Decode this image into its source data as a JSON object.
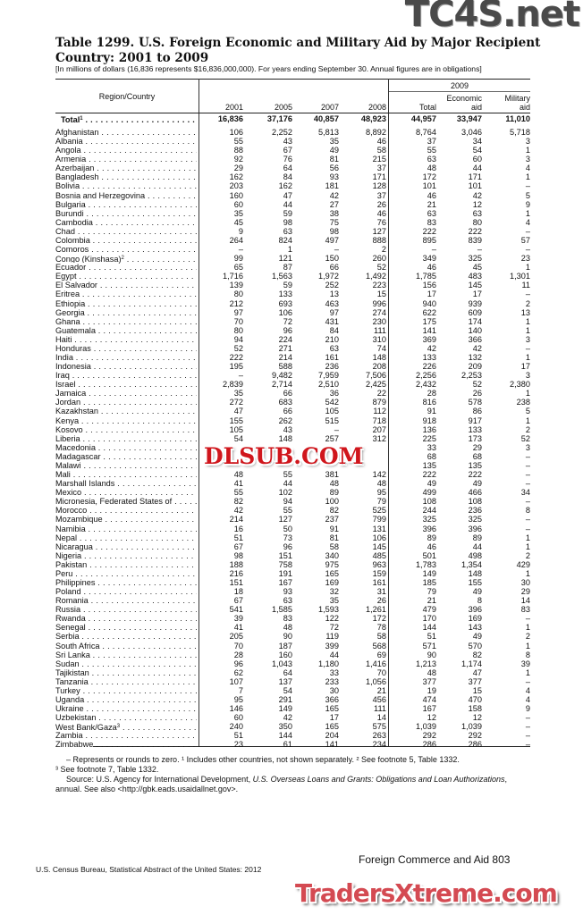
{
  "title": "Table 1299. U.S. Foreign Economic and Military Aid by Major Recipient Country: 2001 to 2009",
  "subtitle": "[In millions of dollars (16,836 represents $16,836,000,000). For years ending September 30. Annual figures are in obligations]",
  "header": {
    "region": "Region/Country",
    "y2001": "2001",
    "y2005": "2005",
    "y2007": "2007",
    "y2008": "2008",
    "y2009": "2009",
    "total": "Total",
    "economic_1": "Economic",
    "economic_2": "aid",
    "military_1": "Military",
    "military_2": "aid"
  },
  "total_row": {
    "name": "Total",
    "sup": "1",
    "values": [
      "16,836",
      "37,176",
      "40,857",
      "48,923",
      "44,957",
      "33,947",
      "11,010"
    ]
  },
  "rows": [
    {
      "name": "Afghanistan",
      "values": [
        "106",
        "2,252",
        "5,813",
        "8,892",
        "8,764",
        "3,046",
        "5,718"
      ]
    },
    {
      "name": "Albania",
      "values": [
        "55",
        "43",
        "35",
        "46",
        "37",
        "34",
        "3"
      ]
    },
    {
      "name": "Angola",
      "values": [
        "88",
        "67",
        "49",
        "58",
        "55",
        "54",
        "1"
      ]
    },
    {
      "name": "Armenia",
      "values": [
        "92",
        "76",
        "81",
        "215",
        "63",
        "60",
        "3"
      ]
    },
    {
      "name": "Azerbaijan",
      "values": [
        "29",
        "64",
        "56",
        "37",
        "48",
        "44",
        "4"
      ]
    },
    {
      "name": "Bangladesh",
      "values": [
        "162",
        "84",
        "93",
        "171",
        "172",
        "171",
        "1"
      ]
    },
    {
      "name": "Bolivia",
      "values": [
        "203",
        "162",
        "181",
        "128",
        "101",
        "101",
        "–"
      ]
    },
    {
      "name": "Bosnia and Herzegovina",
      "values": [
        "160",
        "47",
        "42",
        "37",
        "46",
        "42",
        "5"
      ]
    },
    {
      "name": "Bulgaria",
      "values": [
        "60",
        "44",
        "27",
        "26",
        "21",
        "12",
        "9"
      ]
    },
    {
      "name": "Burundi",
      "values": [
        "35",
        "59",
        "38",
        "46",
        "63",
        "63",
        "1"
      ]
    },
    {
      "name": "Cambodia",
      "values": [
        "45",
        "98",
        "75",
        "76",
        "83",
        "80",
        "4"
      ]
    },
    {
      "name": "Chad",
      "values": [
        "9",
        "63",
        "98",
        "127",
        "222",
        "222",
        "–"
      ]
    },
    {
      "name": "Colombia",
      "values": [
        "264",
        "824",
        "497",
        "888",
        "895",
        "839",
        "57"
      ]
    },
    {
      "name": "Comoros",
      "values": [
        "–",
        "1",
        "–",
        "2",
        "–",
        "–",
        "–"
      ]
    },
    {
      "name": "Congo (Kinshasa)",
      "sup": "2",
      "values": [
        "99",
        "121",
        "150",
        "260",
        "349",
        "325",
        "23"
      ]
    },
    {
      "name": "Ecuador",
      "values": [
        "65",
        "87",
        "66",
        "52",
        "46",
        "45",
        "1"
      ]
    },
    {
      "name": "Egypt",
      "values": [
        "1,716",
        "1,563",
        "1,972",
        "1,492",
        "1,785",
        "483",
        "1,301"
      ]
    },
    {
      "name": "El Salvador",
      "values": [
        "139",
        "59",
        "252",
        "223",
        "156",
        "145",
        "11"
      ]
    },
    {
      "name": "Eritrea",
      "values": [
        "80",
        "133",
        "13",
        "15",
        "17",
        "17",
        "–"
      ]
    },
    {
      "name": "Ethiopia",
      "values": [
        "212",
        "693",
        "463",
        "996",
        "940",
        "939",
        "2"
      ]
    },
    {
      "name": "Georgia",
      "values": [
        "97",
        "106",
        "97",
        "274",
        "622",
        "609",
        "13"
      ]
    },
    {
      "name": "Ghana",
      "values": [
        "70",
        "72",
        "431",
        "230",
        "175",
        "174",
        "1"
      ]
    },
    {
      "name": "Guatemala",
      "values": [
        "80",
        "96",
        "84",
        "111",
        "141",
        "140",
        "1"
      ]
    },
    {
      "name": "Haiti",
      "values": [
        "94",
        "224",
        "210",
        "310",
        "369",
        "366",
        "3"
      ]
    },
    {
      "name": "Honduras",
      "values": [
        "52",
        "271",
        "63",
        "74",
        "42",
        "42",
        "–"
      ]
    },
    {
      "name": "India",
      "values": [
        "222",
        "214",
        "161",
        "148",
        "133",
        "132",
        "1"
      ]
    },
    {
      "name": "Indonesia",
      "values": [
        "195",
        "588",
        "236",
        "208",
        "226",
        "209",
        "17"
      ]
    },
    {
      "name": "Iraq",
      "values": [
        "–",
        "9,482",
        "7,959",
        "7,506",
        "2,256",
        "2,253",
        "3"
      ]
    },
    {
      "name": "Israel",
      "values": [
        "2,839",
        "2,714",
        "2,510",
        "2,425",
        "2,432",
        "52",
        "2,380"
      ]
    },
    {
      "name": "Jamaica",
      "values": [
        "35",
        "66",
        "36",
        "22",
        "28",
        "26",
        "1"
      ]
    },
    {
      "name": "Jordan",
      "values": [
        "272",
        "683",
        "542",
        "879",
        "816",
        "578",
        "238"
      ]
    },
    {
      "name": "Kazakhstan",
      "values": [
        "47",
        "66",
        "105",
        "112",
        "91",
        "86",
        "5"
      ]
    },
    {
      "name": "Kenya",
      "values": [
        "155",
        "262",
        "515",
        "718",
        "918",
        "917",
        "1"
      ]
    },
    {
      "name": "Kosovo",
      "values": [
        "105",
        "43",
        "–",
        "207",
        "136",
        "133",
        "2"
      ]
    },
    {
      "name": "Liberia",
      "values": [
        "54",
        "148",
        "257",
        "312",
        "225",
        "173",
        "52"
      ]
    },
    {
      "name": "Macedonia",
      "values": [
        "",
        "",
        "",
        "",
        "33",
        "29",
        "3"
      ]
    },
    {
      "name": "Madagascar",
      "values": [
        "",
        "",
        "",
        "",
        "68",
        "68",
        "–"
      ]
    },
    {
      "name": "Malawi",
      "values": [
        "",
        "",
        "",
        "",
        "135",
        "135",
        "–"
      ]
    },
    {
      "name": "Mali",
      "values": [
        "48",
        "55",
        "381",
        "142",
        "222",
        "222",
        "–"
      ]
    },
    {
      "name": "Marshall Islands",
      "values": [
        "41",
        "44",
        "48",
        "48",
        "49",
        "49",
        "–"
      ]
    },
    {
      "name": "Mexico",
      "values": [
        "55",
        "102",
        "89",
        "95",
        "499",
        "466",
        "34"
      ]
    },
    {
      "name": "Micronesia, Federated States of",
      "values": [
        "82",
        "94",
        "100",
        "79",
        "108",
        "108",
        "–"
      ]
    },
    {
      "name": "Morocco",
      "values": [
        "42",
        "55",
        "82",
        "525",
        "244",
        "236",
        "8"
      ]
    },
    {
      "name": "Mozambique",
      "values": [
        "214",
        "127",
        "237",
        "799",
        "325",
        "325",
        "–"
      ]
    },
    {
      "name": "Namibia",
      "values": [
        "16",
        "50",
        "91",
        "131",
        "396",
        "396",
        "–"
      ]
    },
    {
      "name": "Nepal",
      "values": [
        "51",
        "73",
        "81",
        "106",
        "89",
        "89",
        "1"
      ]
    },
    {
      "name": "Nicaragua",
      "values": [
        "67",
        "96",
        "58",
        "145",
        "46",
        "44",
        "1"
      ]
    },
    {
      "name": "Nigeria",
      "values": [
        "98",
        "151",
        "340",
        "485",
        "501",
        "498",
        "2"
      ]
    },
    {
      "name": "Pakistan",
      "values": [
        "188",
        "758",
        "975",
        "963",
        "1,783",
        "1,354",
        "429"
      ]
    },
    {
      "name": "Peru",
      "values": [
        "216",
        "191",
        "165",
        "159",
        "149",
        "148",
        "1"
      ]
    },
    {
      "name": "Philippines",
      "values": [
        "151",
        "167",
        "169",
        "161",
        "185",
        "155",
        "30"
      ]
    },
    {
      "name": "Poland",
      "values": [
        "18",
        "93",
        "32",
        "31",
        "79",
        "49",
        "29"
      ]
    },
    {
      "name": "Romania",
      "values": [
        "67",
        "63",
        "35",
        "26",
        "21",
        "8",
        "14"
      ]
    },
    {
      "name": "Russia",
      "values": [
        "541",
        "1,585",
        "1,593",
        "1,261",
        "479",
        "396",
        "83"
      ]
    },
    {
      "name": "Rwanda",
      "values": [
        "39",
        "83",
        "122",
        "172",
        "170",
        "169",
        "–"
      ]
    },
    {
      "name": "Senegal",
      "values": [
        "41",
        "48",
        "72",
        "78",
        "144",
        "143",
        "1"
      ]
    },
    {
      "name": "Serbia",
      "values": [
        "205",
        "90",
        "119",
        "58",
        "51",
        "49",
        "2"
      ]
    },
    {
      "name": "South Africa",
      "values": [
        "70",
        "187",
        "399",
        "568",
        "571",
        "570",
        "1"
      ]
    },
    {
      "name": "Sri Lanka",
      "values": [
        "28",
        "160",
        "44",
        "69",
        "90",
        "82",
        "8"
      ]
    },
    {
      "name": "Sudan",
      "values": [
        "96",
        "1,043",
        "1,180",
        "1,416",
        "1,213",
        "1,174",
        "39"
      ]
    },
    {
      "name": "Tajikistan",
      "values": [
        "62",
        "64",
        "33",
        "70",
        "48",
        "47",
        "1"
      ]
    },
    {
      "name": "Tanzania",
      "values": [
        "107",
        "137",
        "233",
        "1,056",
        "377",
        "377",
        "–"
      ]
    },
    {
      "name": "Turkey",
      "values": [
        "7",
        "54",
        "30",
        "21",
        "19",
        "15",
        "4"
      ]
    },
    {
      "name": "Uganda",
      "values": [
        "95",
        "291",
        "366",
        "456",
        "474",
        "470",
        "4"
      ]
    },
    {
      "name": "Ukraine",
      "values": [
        "146",
        "149",
        "165",
        "111",
        "167",
        "158",
        "9"
      ]
    },
    {
      "name": "Uzbekistan",
      "values": [
        "60",
        "42",
        "17",
        "14",
        "12",
        "12",
        "–"
      ]
    },
    {
      "name": "West Bank/Gaza",
      "sup": "3",
      "values": [
        "240",
        "350",
        "165",
        "575",
        "1,039",
        "1,039",
        "–"
      ]
    },
    {
      "name": "Zambia",
      "values": [
        "51",
        "144",
        "204",
        "263",
        "292",
        "292",
        "–"
      ]
    },
    {
      "name": "Zimbabwe",
      "values": [
        "23",
        "61",
        "141",
        "234",
        "286",
        "286",
        "–"
      ]
    }
  ],
  "notes": {
    "line1": "– Represents or rounds to zero. ¹ Includes other countries, not shown separately. ² See footnote 5, Table 1332.",
    "line2": "³ See footnote 7, Table 1332.",
    "source_prefix": "Source: U.S. Agency for International Development, ",
    "source_title": "U.S. Overseas Loans and Grants: Obligations and Loan Authorizations",
    "source_suffix": ",",
    "line4": "annual. See also <http://gbk.eads.usaidallnet.gov>."
  },
  "footer": {
    "section": "Foreign Commerce and Aid  803",
    "publisher": "U.S. Census Bureau, Statistical Abstract of the United States: 2012"
  },
  "watermarks": {
    "top": "TC4S.net",
    "middle": "DLSUB.COM",
    "bottom": "TradersXtreme.com"
  }
}
